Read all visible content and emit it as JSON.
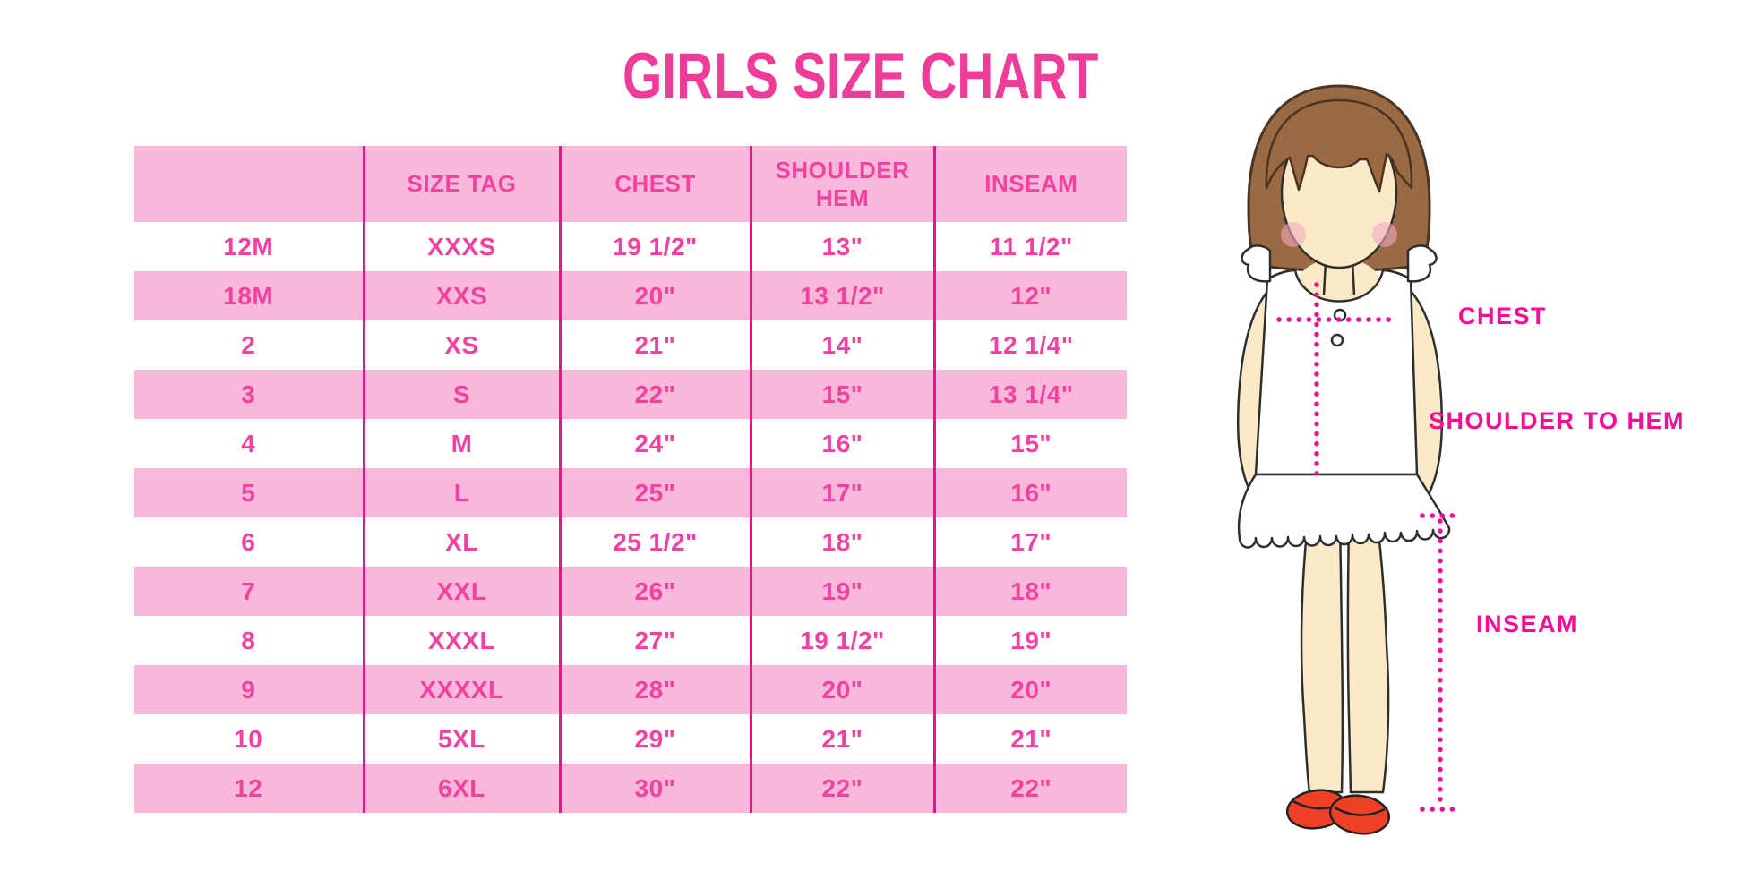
{
  "title": "GIRLS SIZE CHART",
  "colors": {
    "band_pink": "#F9B7D9",
    "line_magenta": "#EA118C",
    "text_pink": "#F2419E",
    "title_pink": "#F03C99",
    "label_magenta": "#F50D93",
    "skin": "#FCE9C6",
    "hair_brown": "#9B6A45",
    "shoe_red": "#F04028"
  },
  "chart_data": {
    "type": "table",
    "title": "GIRLS SIZE CHART",
    "columns": [
      "",
      "SIZE TAG",
      "CHEST",
      "SHOULDER HEM",
      "INSEAM"
    ],
    "rows": [
      [
        "12M",
        "XXXS",
        "19 1/2\"",
        "13\"",
        "11 1/2\""
      ],
      [
        "18M",
        "XXS",
        "20\"",
        "13 1/2\"",
        "12\""
      ],
      [
        "2",
        "XS",
        "21\"",
        "14\"",
        "12 1/4\""
      ],
      [
        "3",
        "S",
        "22\"",
        "15\"",
        "13 1/4\""
      ],
      [
        "4",
        "M",
        "24\"",
        "16\"",
        "15\""
      ],
      [
        "5",
        "L",
        "25\"",
        "17\"",
        "16\""
      ],
      [
        "6",
        "XL",
        "25 1/2\"",
        "18\"",
        "17\""
      ],
      [
        "7",
        "XXL",
        "26\"",
        "19\"",
        "18\""
      ],
      [
        "8",
        "XXXL",
        "27\"",
        "19 1/2\"",
        "19\""
      ],
      [
        "9",
        "XXXXL",
        "28\"",
        "20\"",
        "20\""
      ],
      [
        "10",
        "5XL",
        "29\"",
        "21\"",
        "21\""
      ],
      [
        "12",
        "6XL",
        "30\"",
        "22\"",
        "22\""
      ]
    ],
    "layout": {
      "striped": true,
      "stripe_order": "white-first",
      "column_dividers": true
    }
  },
  "figure": {
    "labels": {
      "chest": "CHEST",
      "shoulder_to_hem": "SHOULDER TO HEM",
      "inseam": "INSEAM"
    }
  }
}
